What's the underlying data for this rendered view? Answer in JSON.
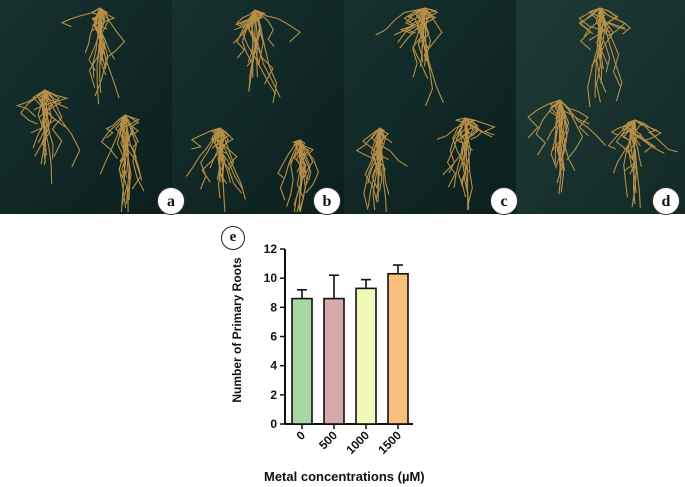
{
  "panels": {
    "a": "a",
    "b": "b",
    "c": "c",
    "d": "d",
    "e": "e"
  },
  "chart_data": {
    "type": "bar",
    "categories": [
      "0",
      "500",
      "1000",
      "1500"
    ],
    "values": [
      8.6,
      8.6,
      9.3,
      10.3
    ],
    "errors": [
      0.6,
      1.6,
      0.6,
      0.6
    ],
    "colors": [
      "#a8d8a2",
      "#d5aaab",
      "#f1f8b8",
      "#f9bf7c"
    ],
    "xlabel": "Metal concentrations (µM)",
    "ylabel": "Number of Primary Roots",
    "ylim": [
      0,
      12
    ],
    "yticks": [
      "0",
      "2",
      "4",
      "6",
      "8",
      "10",
      "12"
    ],
    "grid": false
  }
}
